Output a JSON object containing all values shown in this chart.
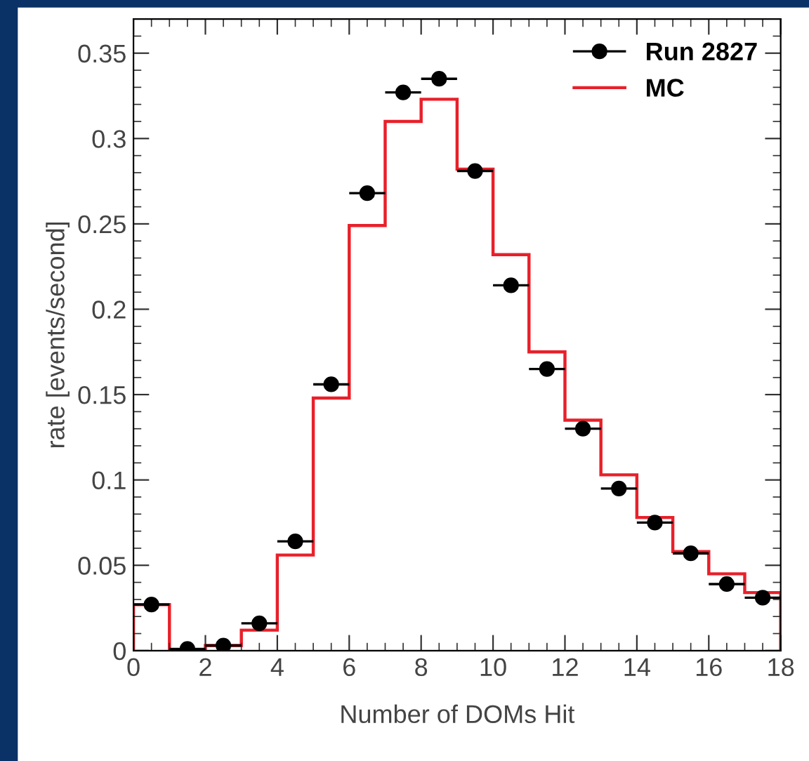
{
  "chart_data": {
    "type": "histogram",
    "xlabel": "Number of DOMs Hit",
    "ylabel": "rate [events/second]",
    "bins": [
      0,
      1,
      2,
      3,
      4,
      5,
      6,
      7,
      8,
      9,
      10,
      11,
      12,
      13,
      14,
      15,
      16,
      17,
      18
    ],
    "series": [
      {
        "name": "Run 2827",
        "type": "scatter",
        "color": "#000000",
        "marker": "circle",
        "x": [
          0.5,
          1.5,
          2.5,
          3.5,
          4.5,
          5.5,
          6.5,
          7.5,
          8.5,
          9.5,
          10.5,
          11.5,
          12.5,
          13.5,
          14.5,
          15.5,
          16.5,
          17.5
        ],
        "values": [
          0.027,
          0.001,
          0.003,
          0.016,
          0.064,
          0.156,
          0.268,
          0.327,
          0.335,
          0.281,
          0.214,
          0.165,
          0.13,
          0.095,
          0.075,
          0.057,
          0.039,
          0.031
        ],
        "xerrors": [
          0.5,
          0.5,
          0.5,
          0.5,
          0.5,
          0.5,
          0.5,
          0.5,
          0.5,
          0.5,
          0.5,
          0.5,
          0.5,
          0.5,
          0.5,
          0.5,
          0.5,
          0.5
        ]
      },
      {
        "name": "MC",
        "color": "#e8202a",
        "values": [
          0.027,
          0,
          0.003,
          0.012,
          0.056,
          0.148,
          0.249,
          0.31,
          0.323,
          0.282,
          0.232,
          0.175,
          0.135,
          0.103,
          0.078,
          0.058,
          0.045,
          0.034
        ]
      }
    ],
    "xlim": [
      0,
      18
    ],
    "xticks": [
      0,
      2,
      4,
      6,
      8,
      10,
      12,
      14,
      16,
      18
    ],
    "ylim": [
      0,
      0.37
    ],
    "yticks": [
      0,
      0.05,
      0.1,
      0.15,
      0.2,
      0.25,
      0.3,
      0.35
    ],
    "legend": "top right",
    "grid": false
  }
}
